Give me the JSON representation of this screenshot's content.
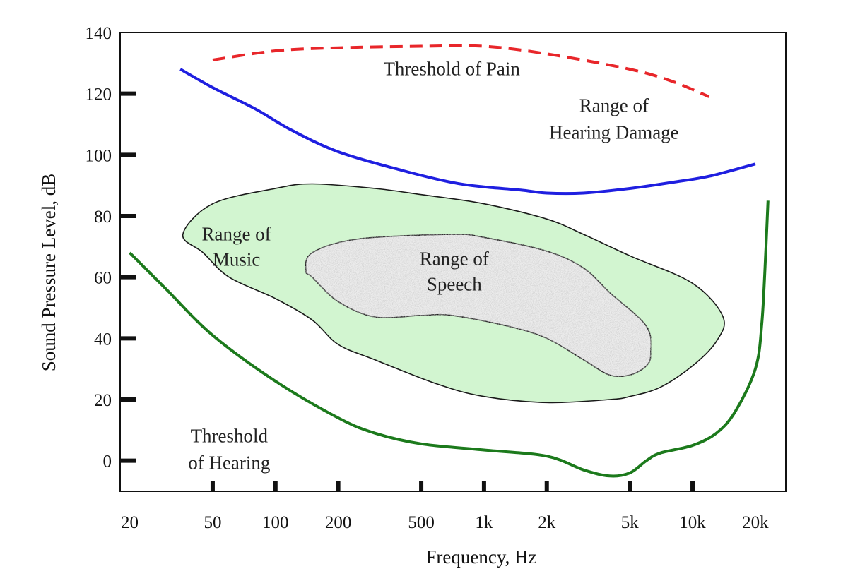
{
  "chart_data": {
    "type": "line",
    "title": "",
    "xlabel": "Frequency, Hz",
    "ylabel": "Sound Pressure Level, dB",
    "x_scale": "log",
    "xlim": [
      18,
      28000
    ],
    "ylim": [
      -10,
      140
    ],
    "grid": false,
    "x_ticks": [
      {
        "value": 20,
        "label": "20"
      },
      {
        "value": 50,
        "label": "50"
      },
      {
        "value": 100,
        "label": "100"
      },
      {
        "value": 200,
        "label": "200"
      },
      {
        "value": 500,
        "label": "500"
      },
      {
        "value": 1000,
        "label": "1k"
      },
      {
        "value": 2000,
        "label": "2k"
      },
      {
        "value": 5000,
        "label": "5k"
      },
      {
        "value": 10000,
        "label": "10k"
      },
      {
        "value": 20000,
        "label": "20k"
      }
    ],
    "y_ticks": [
      {
        "value": 0,
        "label": "0"
      },
      {
        "value": 20,
        "label": "20"
      },
      {
        "value": 40,
        "label": "40"
      },
      {
        "value": 60,
        "label": "60"
      },
      {
        "value": 80,
        "label": "80"
      },
      {
        "value": 100,
        "label": "100"
      },
      {
        "value": 120,
        "label": "120"
      },
      {
        "value": 140,
        "label": "140"
      }
    ],
    "curves": [
      {
        "key": "threshold-of-pain",
        "color": "#e8262a",
        "dashed": true,
        "points": [
          [
            50,
            131
          ],
          [
            100,
            134
          ],
          [
            200,
            135
          ],
          [
            500,
            135.5
          ],
          [
            1000,
            135.5
          ],
          [
            2000,
            133
          ],
          [
            5000,
            128
          ],
          [
            8000,
            124
          ],
          [
            12000,
            119
          ]
        ]
      },
      {
        "key": "hearing-damage",
        "color": "#1f1fe0",
        "dashed": false,
        "points": [
          [
            35,
            128
          ],
          [
            50,
            122
          ],
          [
            80,
            115
          ],
          [
            120,
            108
          ],
          [
            200,
            101
          ],
          [
            400,
            95
          ],
          [
            700,
            91
          ],
          [
            1000,
            89.5
          ],
          [
            1500,
            88.5
          ],
          [
            2000,
            87.5
          ],
          [
            3000,
            87.5
          ],
          [
            5000,
            89
          ],
          [
            8000,
            91
          ],
          [
            12000,
            93
          ],
          [
            20000,
            97
          ]
        ]
      },
      {
        "key": "threshold-of-hearing",
        "color": "#1c7a1c",
        "dashed": false,
        "points": [
          [
            20,
            68
          ],
          [
            30,
            56
          ],
          [
            50,
            41
          ],
          [
            100,
            26
          ],
          [
            200,
            14
          ],
          [
            300,
            9
          ],
          [
            500,
            5.5
          ],
          [
            1000,
            3.5
          ],
          [
            2000,
            1.5
          ],
          [
            3000,
            -3
          ],
          [
            4000,
            -5
          ],
          [
            5000,
            -4
          ],
          [
            6000,
            0
          ],
          [
            7000,
            2.5
          ],
          [
            10000,
            5
          ],
          [
            13000,
            9
          ],
          [
            16000,
            16
          ],
          [
            20000,
            30
          ],
          [
            21500,
            45
          ],
          [
            22500,
            70
          ],
          [
            23000,
            85
          ]
        ]
      }
    ],
    "regions": [
      {
        "key": "music",
        "label_lines": [
          "Range of",
          "Music"
        ],
        "label_at": [
          65,
          72
        ],
        "fill": "#d2f5d0",
        "stroke": "#1a1a1a",
        "boundary": [
          [
            36,
            74
          ],
          [
            50,
            84
          ],
          [
            100,
            89
          ],
          [
            150,
            90.5
          ],
          [
            300,
            89
          ],
          [
            500,
            87
          ],
          [
            1000,
            84
          ],
          [
            2000,
            79
          ],
          [
            3000,
            74
          ],
          [
            5000,
            67
          ],
          [
            10000,
            58
          ],
          [
            14000,
            47
          ],
          [
            13000,
            39
          ],
          [
            10000,
            31
          ],
          [
            7000,
            24
          ],
          [
            5000,
            21
          ],
          [
            4000,
            20
          ],
          [
            2000,
            19
          ],
          [
            1000,
            21
          ],
          [
            600,
            25
          ],
          [
            300,
            33
          ],
          [
            200,
            38
          ],
          [
            150,
            46
          ],
          [
            100,
            53
          ],
          [
            60,
            60
          ],
          [
            45,
            68
          ]
        ]
      },
      {
        "key": "speech",
        "label_lines": [
          "Range of",
          "Speech"
        ],
        "label_at": [
          720,
          64
        ],
        "fill": "#ececec",
        "stroke": "#1a1a1a",
        "boundary": [
          [
            150,
            68
          ],
          [
            250,
            72.5
          ],
          [
            700,
            74
          ],
          [
            1000,
            73
          ],
          [
            2000,
            68.5
          ],
          [
            3000,
            63
          ],
          [
            4000,
            55
          ],
          [
            6000,
            44
          ],
          [
            6300,
            35
          ],
          [
            6000,
            31
          ],
          [
            5000,
            28
          ],
          [
            4000,
            28
          ],
          [
            3000,
            33
          ],
          [
            2000,
            40
          ],
          [
            1300,
            44
          ],
          [
            700,
            47.5
          ],
          [
            500,
            47.5
          ],
          [
            300,
            47
          ],
          [
            200,
            52
          ],
          [
            150,
            60
          ],
          [
            140,
            62
          ]
        ]
      }
    ],
    "annotations": [
      {
        "key": "pain",
        "lines": [
          "Threshold of Pain"
        ],
        "at": [
          700,
          126
        ],
        "anchor": "middle"
      },
      {
        "key": "damage",
        "lines": [
          "Range of",
          "Hearing Damage"
        ],
        "at": [
          4200,
          114
        ],
        "anchor": "middle"
      },
      {
        "key": "hearing",
        "lines": [
          "Threshold",
          "of Hearing"
        ],
        "at": [
          60,
          6
        ],
        "anchor": "middle"
      }
    ]
  }
}
